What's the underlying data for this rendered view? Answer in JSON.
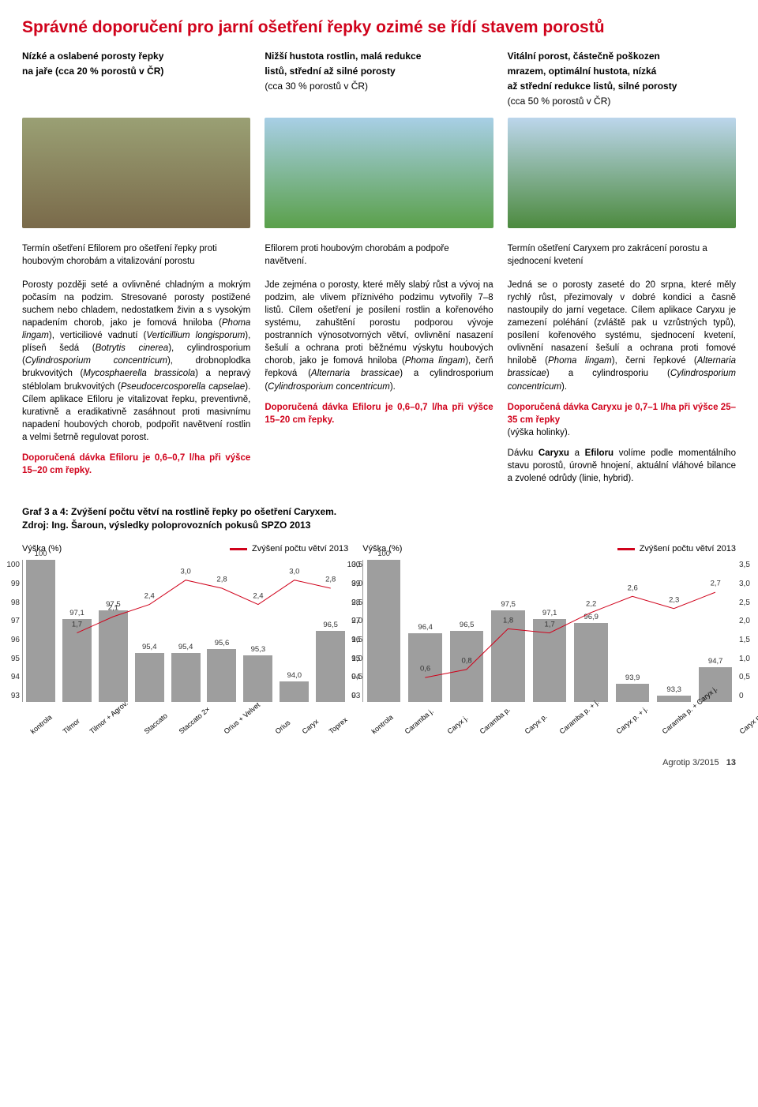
{
  "title": "Správné doporučení pro jarní ošetření řepky ozimé se řídí stavem porostů",
  "header_cols": [
    {
      "h1": "Nízké a oslabené porosty řepky",
      "h2": "na jaře (cca 20 % porostů v ČR)"
    },
    {
      "h1": "Nižší hustota rostlin, malá redukce",
      "h2": "listů, střední až silné porosty",
      "h3": "(cca 30 % porostů v ČR)"
    },
    {
      "h1": "Vitální porost, částečně poškozen",
      "h2": "mrazem, optimální hustota, nízká",
      "h3": "až střední redukce listů, silné porosty",
      "h4": "(cca 50 % porostů v ČR)"
    }
  ],
  "photo_bg": [
    "linear-gradient(#9aa074,#7a6a4a)",
    "linear-gradient(#a8cfe6,#5aa04a)",
    "linear-gradient(#bcd6ec,#4c8a3e)"
  ],
  "captions": [
    "Termín ošetření Efilorem pro ošetření řepky proti houbovým chorobám a vitalizování porostu",
    "Efilorem proti houbovým chorobám a podpoře navětvení.",
    "Termín ošetření Caryxem pro zakrácení porostu a sjednocení kvetení"
  ],
  "body": {
    "col1": {
      "p1a": "Porosty později seté a ovlivněné chladným a mokrým počasím na podzim. Stresované porosty postižené suchem nebo chladem, nedostatkem živin a s vysokým napadením chorob, jako je fomová hniloba (",
      "i1": "Phoma lingam",
      "p1b": "), verticiliové vadnutí (",
      "i2": "Verticillium longisporum",
      "p1c": "), plíseň šedá (",
      "i3": "Botrytis cinerea",
      "p1d": "), cylindrosporium (",
      "i4": "Cylindrosporium concentricum",
      "p1e": "), drobnoplodka brukvovitých (",
      "i5": "Mycosphaerella brassicola",
      "p1f": ") a nepravý stéblolam brukvovitých (",
      "i6": "Pseudocercosporella capselae",
      "p1g": "). Cílem aplikace Efiloru je vitalizovat řepku, preventivně, kurativně a eradikativně zasáhnout proti masivnímu napadení houbových chorob, podpořit navětvení rostlin a velmi šetrně regulovat porost.",
      "rec": "Doporučená dávka Efiloru je 0,6–0,7 l/ha při výšce 15–20 cm řepky."
    },
    "col2": {
      "p1a": "Jde zejména o porosty, které měly slabý růst a vývoj na podzim, ale vlivem příznivého podzimu vytvořily 7–8 listů. Cílem ošetření je posílení rostlin a kořenového systému, zahuštění porostu podporou vývoje postranních výnosotvorných větví, ovlivnění nasazení šešulí a ochrana proti běžnému výskytu houbových chorob, jako je fomová hniloba (",
      "i1": "Phoma lingam",
      "p1b": "), čerň řepková (",
      "i2": "Alternaria brassicae",
      "p1c": ") a cylindrosporium (",
      "i3": "Cylindrosporium concentricum",
      "p1d": ").",
      "rec": "Doporučená dávka Efiloru je 0,6–0,7 l/ha při výšce 15–20 cm řepky."
    },
    "col3": {
      "p1a": "Jedná se o porosty zaseté do 20 srpna, které měly rychlý růst, přezimovaly v dobré kondici a časně nastoupily do jarní vegetace. Cílem aplikace Caryxu je zamezení poléhání (zvláště pak u vzrůstných typů), posílení kořenového systému, sjednocení kvetení, ovlivnění nasazení šešulí a ochrana proti fomové hnilobě (",
      "i1": "Phoma lingam",
      "p1b": "), černi řepkové (",
      "i2": "Alternaria brassicae",
      "p1c": ") a cylindrosporiu (",
      "i3": "Cylindrosporium concentricum",
      "p1d": ").",
      "rec": "Doporučená dávka Caryxu je 0,7–1 l/ha při výšce 25–35 cm řepky",
      "rec2": "(výška holinky).",
      "p2a": "Dávku ",
      "b1": "Caryxu",
      "p2b": " a ",
      "b2": "Efiloru",
      "p2c": " volíme podle momentálního stavu porostů, úrovně hnojení, aktuální vláhové bilance a zvolené odrůdy (linie, hybrid)."
    }
  },
  "graf_title": "Graf 3 a 4: Zvýšení počtu větví na rostlině řepky po ošetření Caryxem.",
  "graf_source": "Zdroj: Ing. Šaroun, výsledky poloprovozních pokusů SPZO 2013",
  "charts": {
    "y_left_label": "Výška (%)",
    "legend_label": "Zvýšení počtu větví 2013",
    "line_color": "#d0021b",
    "bar_color": "#9e9e9e",
    "y_left": {
      "min": 93,
      "max": 100,
      "ticks": [
        100,
        99,
        98,
        97,
        96,
        95,
        94,
        93
      ]
    },
    "y_right": {
      "min": 0,
      "max": 3.5,
      "ticks": [
        "3,5",
        "3,0",
        "2,5",
        "2,0",
        "1,5",
        "1,0",
        "0,5",
        "0"
      ]
    },
    "chart1": {
      "cats": [
        "kontrola",
        "Tilmor",
        "Tilmor + Agrov.",
        "Staccato",
        "Staccato 2×",
        "Orius + Velvet",
        "Orius",
        "Caryx",
        "Toprex"
      ],
      "bars": [
        100,
        97.1,
        97.5,
        95.4,
        95.4,
        95.6,
        95.3,
        94.0,
        96.5
      ],
      "bar_labels": [
        "100",
        "97,1",
        "97,5",
        "95,4",
        "95,4",
        "95,6",
        "95,3",
        "94,0",
        "96,5"
      ],
      "line": [
        null,
        1.7,
        2.1,
        2.4,
        3.0,
        2.8,
        2.4,
        3.0,
        2.8
      ],
      "line_labels": [
        "",
        "1,7",
        "2,1",
        "2,4",
        "3,0",
        "2,8",
        "2,4",
        "3,0",
        "2,8"
      ]
    },
    "chart2": {
      "cats": [
        "kontrola",
        "Caramba j.",
        "Caryx j.",
        "Caramba p.",
        "Caryx p.",
        "Caramba p. + j.",
        "Caryx p. + j.",
        "Caramba p. + Caryx j.",
        "Caryx p. + Caramba j."
      ],
      "bars": [
        100,
        96.4,
        96.5,
        97.5,
        97.1,
        96.9,
        93.9,
        93.3,
        94.7
      ],
      "bar_labels": [
        "100",
        "96,4",
        "96,5",
        "97,5",
        "97,1",
        "96,9",
        "93,9",
        "93,3",
        "94,7"
      ],
      "line": [
        null,
        0.6,
        0.8,
        1.8,
        1.7,
        2.2,
        2.6,
        2.3,
        2.7
      ],
      "line_labels": [
        "",
        "0,6",
        "0,8",
        "1,8",
        "1,7",
        "2,2",
        "2,6",
        "2,3",
        "2,7"
      ]
    }
  },
  "footer": "Agrotip 3/2015",
  "footer_page": "13"
}
